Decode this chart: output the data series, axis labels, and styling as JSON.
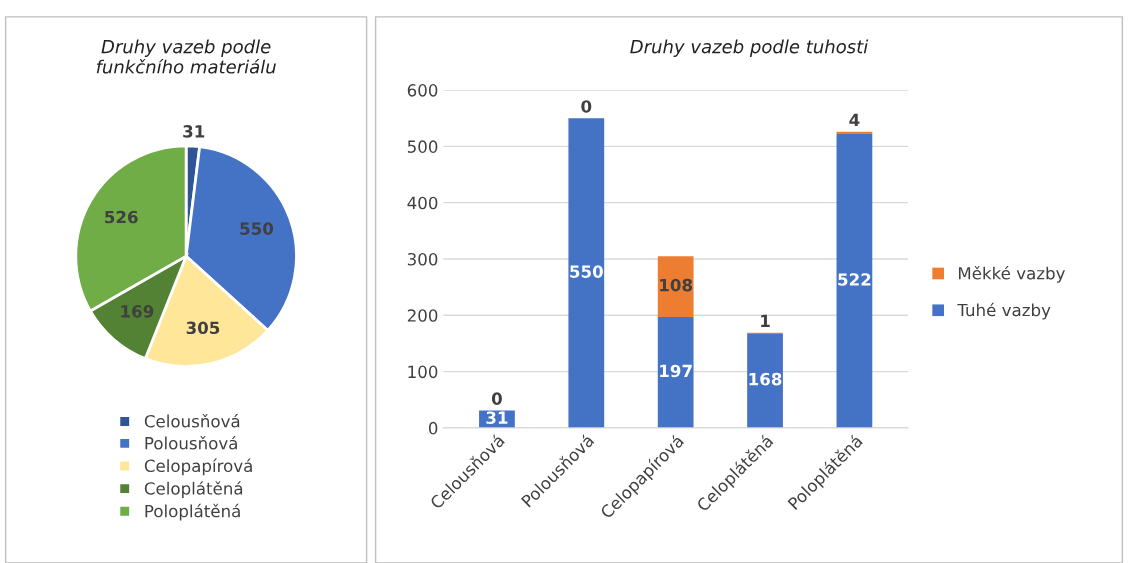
{
  "chart_data": [
    {
      "type": "pie",
      "title": "Druhy vazeb podle\nfunkčního materiálu",
      "categories": [
        "Celousňová",
        "Polousňová",
        "Celopapírová",
        "Celoplátěná",
        "Poloplátěná"
      ],
      "values": [
        31,
        550,
        305,
        169,
        526
      ],
      "colors": [
        "#2f5597",
        "#4472c4",
        "#ffe699",
        "#548235",
        "#70ad47"
      ],
      "data_labels": true,
      "legend": "bottom"
    },
    {
      "type": "bar",
      "title": "Druhy vazeb podle tuhosti",
      "categories": [
        "Celousňová",
        "Polousňová",
        "Celopapírová",
        "Celoplátěná",
        "Poloplátěná"
      ],
      "stacked": true,
      "series": [
        {
          "name": "Tuhé vazby",
          "color": "#4472c4",
          "values": [
            31,
            550,
            197,
            168,
            522
          ]
        },
        {
          "name": "Měkké vazby",
          "color": "#ed7d31",
          "values": [
            0,
            0,
            108,
            1,
            4
          ]
        }
      ],
      "ylim": [
        0,
        600
      ],
      "yticks": [
        0,
        100,
        200,
        300,
        400,
        500,
        600
      ],
      "grid": "y",
      "legend": "right",
      "data_labels": true
    }
  ]
}
